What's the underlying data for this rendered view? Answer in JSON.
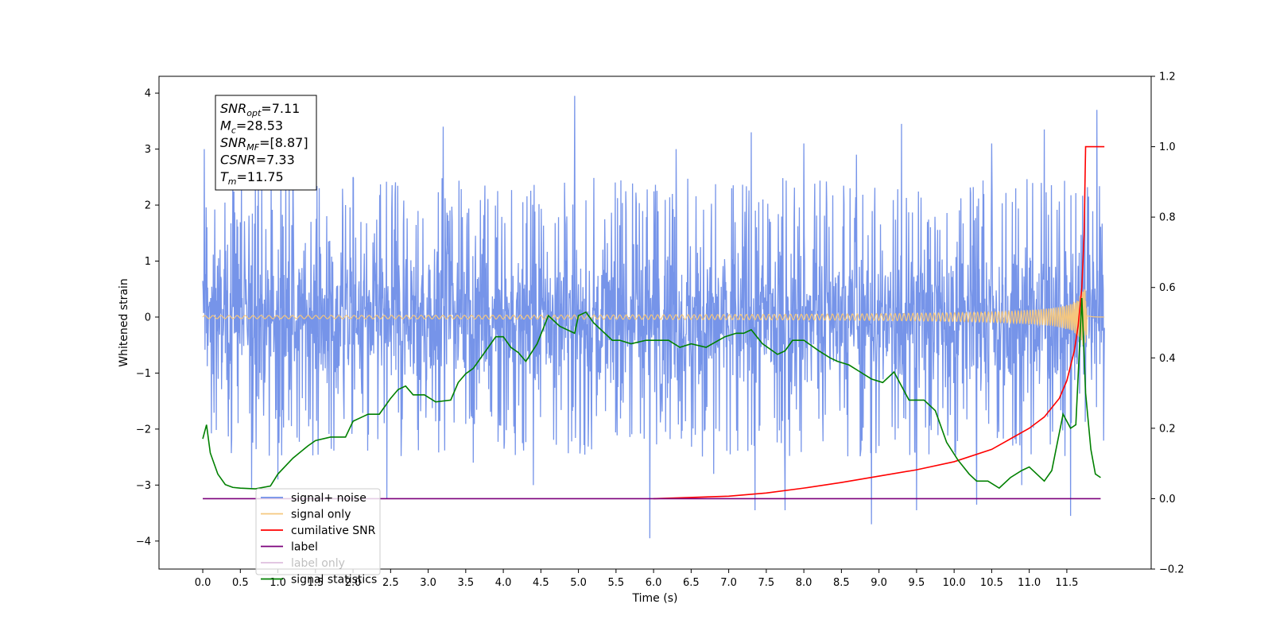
{
  "chart_data": {
    "type": "line",
    "xlabel": "Time (s)",
    "ylabel": "Whitened strain",
    "xlim": [
      -0.5825,
      12.6225
    ],
    "ylim": [
      -4.5,
      4.3
    ],
    "y2lim": [
      -0.2,
      1.2
    ],
    "x_ticks": [
      0.0,
      0.5,
      1.0,
      1.5,
      2.0,
      2.5,
      3.0,
      3.5,
      4.0,
      4.5,
      5.0,
      5.5,
      6.0,
      6.5,
      7.0,
      7.5,
      8.0,
      8.5,
      9.0,
      9.5,
      10.0,
      10.5,
      11.0,
      11.5
    ],
    "x_tick_labels": [
      "0.0",
      "0.5",
      "1.0",
      "1.5",
      "2.0",
      "2.5",
      "3.0",
      "3.5",
      "4.0",
      "4.5",
      "5.0",
      "5.5",
      "6.0",
      "6.5",
      "7.0",
      "7.5",
      "8.0",
      "8.5",
      "9.0",
      "9.5",
      "10.0",
      "10.5",
      "11.0",
      "11.5"
    ],
    "y_ticks": [
      4,
      3,
      2,
      1,
      0,
      -1,
      -2,
      -3,
      -4
    ],
    "y_tick_labels": [
      "4",
      "3",
      "2",
      "1",
      "0",
      "−1",
      "−2",
      "−3",
      "−4"
    ],
    "y2_ticks": [
      1.2,
      1.0,
      0.8,
      0.6,
      0.4,
      0.2,
      0.0,
      -0.2
    ],
    "y2_tick_labels": [
      "1.2",
      "1.0",
      "0.8",
      "0.6",
      "0.4",
      "0.2",
      "0.0",
      "−0.2"
    ],
    "grid": false,
    "legend_position": "lower-left",
    "legend": [
      {
        "label": "signal+ noise",
        "color": "#6f8ee8"
      },
      {
        "label": "signal only",
        "color": "#f5c77e"
      },
      {
        "label": "cumilative SNR",
        "color": "#ff0000"
      },
      {
        "label": "label",
        "color": "#7b007b"
      },
      {
        "label": "label only",
        "color": "#7b007b"
      },
      {
        "label": "signal statistics",
        "color": "#008000"
      }
    ],
    "annotation": {
      "lines": [
        {
          "base": "SNR",
          "sub": "opt",
          "value": "=7.11"
        },
        {
          "base": "M",
          "sub": "c",
          "value": "=28.53"
        },
        {
          "base": "SNR",
          "sub": "MF",
          "value": "=[8.87]"
        },
        {
          "base": "CSNR",
          "sub": "",
          "value": "=7.33"
        },
        {
          "base": "T",
          "sub": "m",
          "value": "=11.75"
        }
      ]
    },
    "series": [
      {
        "name": "signal+ noise",
        "axis": "left",
        "color": "#6f8ee8",
        "style": "noise",
        "x_range": [
          0.0,
          12.0
        ],
        "band": [
          -1.7,
          1.7
        ],
        "spikes": [
          {
            "x": 0.02,
            "y": 3.0
          },
          {
            "x": 0.4,
            "y": 2.6
          },
          {
            "x": 1.2,
            "y": 2.8
          },
          {
            "x": 1.55,
            "y": 2.3
          },
          {
            "x": 2.0,
            "y": 2.5
          },
          {
            "x": 3.2,
            "y": 3.4
          },
          {
            "x": 4.95,
            "y": 3.95
          },
          {
            "x": 5.95,
            "y": 3.45
          },
          {
            "x": 7.3,
            "y": 3.3
          },
          {
            "x": 8.0,
            "y": 3.1
          },
          {
            "x": 9.3,
            "y": 3.45
          },
          {
            "x": 11.2,
            "y": 3.35
          },
          {
            "x": 11.9,
            "y": 3.7
          },
          {
            "x": 0.65,
            "y": -3.05
          },
          {
            "x": 2.45,
            "y": -3.25
          },
          {
            "x": 5.95,
            "y": -3.95
          },
          {
            "x": 7.35,
            "y": -3.45
          },
          {
            "x": 7.75,
            "y": -3.45
          },
          {
            "x": 8.9,
            "y": -3.7
          },
          {
            "x": 9.5,
            "y": -3.45
          },
          {
            "x": 10.3,
            "y": -3.35
          },
          {
            "x": 11.55,
            "y": -3.55
          },
          {
            "x": 1.0,
            "y": -2.9
          },
          {
            "x": 4.4,
            "y": -3.0
          },
          {
            "x": 10.9,
            "y": -3.0
          },
          {
            "x": 3.6,
            "y": -2.6
          },
          {
            "x": 6.8,
            "y": -2.8
          },
          {
            "x": 6.3,
            "y": 3.0
          },
          {
            "x": 8.7,
            "y": 2.9
          },
          {
            "x": 10.5,
            "y": 3.1
          }
        ]
      },
      {
        "name": "signal only",
        "axis": "left",
        "color": "#f5c77e",
        "style": "chirp",
        "x_range": [
          0.0,
          12.0
        ],
        "merger_time": 11.75,
        "peak_amplitude": 0.5
      },
      {
        "name": "cumilative SNR",
        "axis": "right",
        "color": "#ff0000",
        "x": [
          6.0,
          7.0,
          7.5,
          8.0,
          8.5,
          9.0,
          9.5,
          10.0,
          10.5,
          11.0,
          11.2,
          11.4,
          11.5,
          11.6,
          11.65,
          11.7,
          11.73,
          11.75,
          11.78,
          12.0
        ],
        "y": [
          0.0,
          0.007,
          0.016,
          0.03,
          0.046,
          0.064,
          0.082,
          0.105,
          0.14,
          0.2,
          0.232,
          0.285,
          0.335,
          0.42,
          0.49,
          0.6,
          0.75,
          1.0,
          1.0,
          1.0
        ]
      },
      {
        "name": "label",
        "axis": "right",
        "color": "#7b007b",
        "x": [
          0.0,
          11.95
        ],
        "y": [
          0.0,
          0.0
        ]
      },
      {
        "name": "signal statistics",
        "axis": "right",
        "color": "#008000",
        "x": [
          0.0,
          0.05,
          0.1,
          0.2,
          0.3,
          0.4,
          0.5,
          0.7,
          0.9,
          1.0,
          1.2,
          1.4,
          1.5,
          1.7,
          1.9,
          2.0,
          2.1,
          2.2,
          2.35,
          2.5,
          2.6,
          2.7,
          2.8,
          2.95,
          3.1,
          3.3,
          3.4,
          3.5,
          3.6,
          3.8,
          3.9,
          4.0,
          4.1,
          4.2,
          4.3,
          4.45,
          4.6,
          4.75,
          4.95,
          5.0,
          5.1,
          5.2,
          5.35,
          5.45,
          5.55,
          5.7,
          5.9,
          6.0,
          6.2,
          6.35,
          6.5,
          6.7,
          6.95,
          7.1,
          7.2,
          7.3,
          7.45,
          7.65,
          7.75,
          7.85,
          8.0,
          8.2,
          8.35,
          8.45,
          8.6,
          8.75,
          8.9,
          9.05,
          9.2,
          9.4,
          9.6,
          9.75,
          9.9,
          10.05,
          10.2,
          10.3,
          10.45,
          10.6,
          10.75,
          10.9,
          11.0,
          11.1,
          11.2,
          11.3,
          11.45,
          11.55,
          11.62,
          11.7,
          11.75,
          11.82,
          11.88,
          11.95
        ],
        "y": [
          0.17,
          0.21,
          0.13,
          0.07,
          0.04,
          0.032,
          0.03,
          0.028,
          0.036,
          0.07,
          0.115,
          0.15,
          0.165,
          0.175,
          0.175,
          0.22,
          0.23,
          0.24,
          0.24,
          0.285,
          0.31,
          0.32,
          0.295,
          0.295,
          0.275,
          0.28,
          0.33,
          0.355,
          0.37,
          0.43,
          0.46,
          0.46,
          0.43,
          0.415,
          0.39,
          0.44,
          0.52,
          0.49,
          0.47,
          0.52,
          0.53,
          0.5,
          0.47,
          0.45,
          0.45,
          0.44,
          0.45,
          0.45,
          0.45,
          0.43,
          0.44,
          0.43,
          0.46,
          0.47,
          0.47,
          0.48,
          0.44,
          0.41,
          0.42,
          0.45,
          0.45,
          0.42,
          0.4,
          0.39,
          0.38,
          0.36,
          0.34,
          0.33,
          0.36,
          0.28,
          0.28,
          0.25,
          0.16,
          0.11,
          0.07,
          0.05,
          0.05,
          0.03,
          0.06,
          0.08,
          0.09,
          0.07,
          0.05,
          0.08,
          0.24,
          0.2,
          0.21,
          0.57,
          0.3,
          0.14,
          0.07,
          0.06
        ]
      }
    ]
  }
}
